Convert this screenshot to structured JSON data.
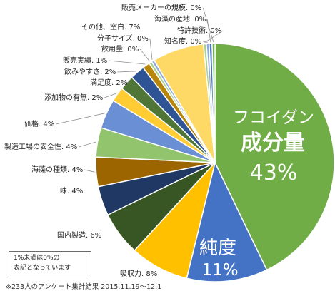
{
  "chart_data": {
    "type": "pie",
    "title": "",
    "slices": [
      {
        "label": "フコイダン成分量",
        "value": 43,
        "color": "#70ad47"
      },
      {
        "label": "純度",
        "value": 11,
        "color": "#4472c4"
      },
      {
        "label": "吸収力",
        "value": 8,
        "color": "#ffc000"
      },
      {
        "label": "国内製造",
        "value": 6,
        "color": "#375623"
      },
      {
        "label": "味",
        "value": 4,
        "color": "#203864"
      },
      {
        "label": "海藻の種類",
        "value": 4,
        "color": "#9c6500"
      },
      {
        "label": "製造工場の安全性",
        "value": 4,
        "color": "#92c46e"
      },
      {
        "label": "価格",
        "value": 4,
        "color": "#6a8fd4"
      },
      {
        "label": "添加物の有無",
        "value": 2,
        "color": "#ffcc33"
      },
      {
        "label": "満足度",
        "value": 2,
        "color": "#4f7636"
      },
      {
        "label": "飲みやすさ",
        "value": 2,
        "color": "#2e5496"
      },
      {
        "label": "販売実績",
        "value": 1,
        "color": "#b8860b"
      },
      {
        "label": "飲用量",
        "value": 0,
        "color": "#a9d18e"
      },
      {
        "label": "分子サイズ",
        "value": 0,
        "color": "#8eaadb"
      },
      {
        "label": "その他、空白",
        "value": 7,
        "color": "#ffd966"
      },
      {
        "label": "特許技術",
        "value": 0,
        "color": "#a9d18e"
      },
      {
        "label": "知名度",
        "value": 0,
        "color": "#8eaadb"
      },
      {
        "label": "海藻の産地",
        "value": 0,
        "color": "#4472c4"
      },
      {
        "label": "販売メーカーの規模",
        "value": 0,
        "color": "#70ad47"
      }
    ],
    "outside_labels": [
      "純度. 11%",
      "吸収力. 8%",
      "国内製造. 6%",
      "味. 4%",
      "海藻の種類. 4%",
      "製造工場の安全性. 4%",
      "価格. 4%",
      "添加物の有無. 2%",
      "満足度. 2%",
      "飲みやすさ. 2%",
      "販売実績. 1%",
      "飲用量. 0%",
      "分子サイズ. 0%",
      "その他、空白. 7%",
      "特許技術. 0%",
      "知名度. 0%",
      "海藻の産地. 0%",
      "販売メーカーの規模. 0%"
    ],
    "big_labels": {
      "main_line1": "フコイダン",
      "main_line2": "成分量",
      "main_pct": "43%",
      "second_line1": "純度",
      "second_pct": "11%"
    }
  },
  "note": {
    "line1": "1%未満は0%の",
    "line2": "表記となっています"
  },
  "footnote": "※233人のアンケート集計結果 2015.11.19～12.1"
}
